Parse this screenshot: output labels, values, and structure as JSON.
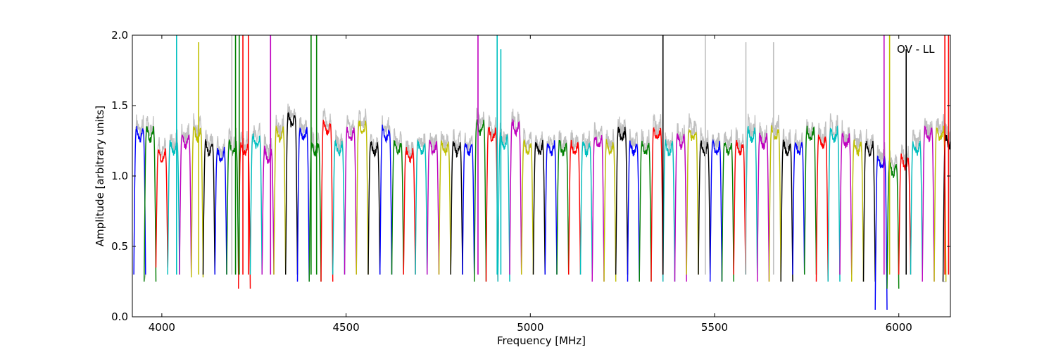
{
  "chart_data": {
    "type": "line",
    "title": "",
    "xlabel": "Frequency [MHz]",
    "ylabel": "Amplitude [arbitrary units]",
    "xlim": [
      3920,
      6140
    ],
    "ylim": [
      0.0,
      2.0
    ],
    "xticks": [
      4000,
      4500,
      5000,
      5500,
      6000
    ],
    "xtick_labels": [
      "4000",
      "4500",
      "5000",
      "5500",
      "6000"
    ],
    "yticks": [
      0.0,
      0.5,
      1.0,
      1.5,
      2.0
    ],
    "ytick_labels": [
      "0.0",
      "0.5",
      "1.0",
      "1.5",
      "2.0"
    ],
    "annotation": "OV - LL",
    "grid": false,
    "colors": [
      "#0000ff",
      "#008000",
      "#ff0000",
      "#00bfbf",
      "#bf00bf",
      "#bfbf00",
      "#000000"
    ],
    "background_trace_color": "#c0c0c0",
    "band_width_mhz": 32,
    "band_centers_mhz": [
      3940,
      3968,
      4000,
      4032,
      4064,
      4096,
      4128,
      4160,
      4192,
      4224,
      4256,
      4288,
      4320,
      4352,
      4384,
      4416,
      4448,
      4480,
      4512,
      4544,
      4576,
      4608,
      4640,
      4672,
      4704,
      4736,
      4768,
      4800,
      4832,
      4864,
      4896,
      4928,
      4960,
      4992,
      5024,
      5056,
      5088,
      5120,
      5152,
      5184,
      5216,
      5248,
      5280,
      5312,
      5344,
      5376,
      5408,
      5440,
      5472,
      5504,
      5536,
      5568,
      5600,
      5632,
      5664,
      5696,
      5728,
      5760,
      5792,
      5824,
      5856,
      5888,
      5920,
      5952,
      5984,
      6016,
      6048,
      6080,
      6112,
      6136
    ],
    "band_plateau_levels": [
      1.3,
      1.3,
      1.15,
      1.2,
      1.25,
      1.3,
      1.2,
      1.15,
      1.2,
      1.2,
      1.25,
      1.15,
      1.3,
      1.4,
      1.3,
      1.2,
      1.35,
      1.2,
      1.3,
      1.35,
      1.2,
      1.3,
      1.2,
      1.15,
      1.2,
      1.2,
      1.2,
      1.2,
      1.2,
      1.35,
      1.3,
      1.25,
      1.35,
      1.2,
      1.2,
      1.2,
      1.2,
      1.2,
      1.2,
      1.25,
      1.2,
      1.3,
      1.2,
      1.2,
      1.3,
      1.2,
      1.25,
      1.3,
      1.2,
      1.2,
      1.2,
      1.2,
      1.3,
      1.25,
      1.3,
      1.2,
      1.2,
      1.3,
      1.25,
      1.3,
      1.25,
      1.2,
      1.2,
      1.1,
      1.05,
      1.1,
      1.2,
      1.3,
      1.3,
      1.25
    ],
    "band_dip_levels": [
      0.3,
      0.25,
      0.35,
      0.3,
      0.3,
      0.28,
      0.3,
      0.3,
      0.3,
      0.2,
      0.3,
      0.3,
      0.3,
      0.3,
      0.25,
      0.25,
      0.25,
      0.3,
      0.3,
      0.3,
      0.3,
      0.3,
      0.3,
      0.3,
      0.3,
      0.3,
      0.3,
      0.3,
      0.3,
      0.25,
      0.25,
      0.25,
      0.3,
      0.3,
      0.3,
      0.3,
      0.3,
      0.3,
      0.3,
      0.25,
      0.25,
      0.3,
      0.25,
      0.25,
      0.25,
      0.25,
      0.25,
      0.3,
      0.3,
      0.25,
      0.25,
      0.3,
      0.3,
      0.25,
      0.25,
      0.25,
      0.3,
      0.3,
      0.25,
      0.25,
      0.3,
      0.25,
      0.25,
      0.05,
      0.2,
      0.3,
      0.3,
      0.25,
      0.25,
      0.25
    ],
    "spikes": [
      {
        "x": 4040,
        "y": 2.0,
        "color": "#00bfbf"
      },
      {
        "x": 4100,
        "y": 1.95,
        "color": "#bfbf00"
      },
      {
        "x": 4190,
        "y": 2.0,
        "color": "#c0c0c0"
      },
      {
        "x": 4200,
        "y": 2.0,
        "color": "#008000"
      },
      {
        "x": 4210,
        "y": 2.0,
        "color": "#008000"
      },
      {
        "x": 4220,
        "y": 2.0,
        "color": "#ff0000"
      },
      {
        "x": 4235,
        "y": 2.0,
        "color": "#ff0000"
      },
      {
        "x": 4295,
        "y": 2.0,
        "color": "#bf00bf"
      },
      {
        "x": 4405,
        "y": 2.0,
        "color": "#008000"
      },
      {
        "x": 4420,
        "y": 2.0,
        "color": "#008000"
      },
      {
        "x": 4858,
        "y": 2.0,
        "color": "#bf00bf"
      },
      {
        "x": 4910,
        "y": 2.0,
        "color": "#00bfbf"
      },
      {
        "x": 4920,
        "y": 1.9,
        "color": "#00bfbf"
      },
      {
        "x": 5360,
        "y": 2.0,
        "color": "#000000"
      },
      {
        "x": 5475,
        "y": 2.0,
        "color": "#c0c0c0"
      },
      {
        "x": 5585,
        "y": 1.95,
        "color": "#c0c0c0"
      },
      {
        "x": 5660,
        "y": 1.95,
        "color": "#c0c0c0"
      },
      {
        "x": 5960,
        "y": 2.0,
        "color": "#bf00bf"
      },
      {
        "x": 5975,
        "y": 2.0,
        "color": "#bfbf00"
      },
      {
        "x": 6020,
        "y": 1.9,
        "color": "#000000"
      },
      {
        "x": 6125,
        "y": 2.0,
        "color": "#ff0000"
      },
      {
        "x": 6135,
        "y": 2.0,
        "color": "#ff0000"
      }
    ]
  }
}
